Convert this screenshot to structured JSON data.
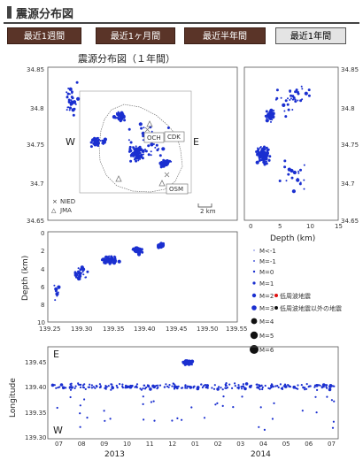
{
  "header": {
    "title": "震源分布図"
  },
  "tabs": [
    {
      "label": "最近1週間"
    },
    {
      "label": "最近1ヶ月間"
    },
    {
      "label": "最近半年間"
    },
    {
      "label": "最近1年間",
      "active": true
    }
  ],
  "map_panel": {
    "title": "震源分布図（１年間）",
    "lat_ticks": [
      "34.85",
      "34.8",
      "34.75",
      "34.7",
      "34.65"
    ],
    "west_label": "W",
    "east_label": "E",
    "stations": [
      "OCH",
      "CDK",
      "OSM"
    ],
    "scale_label": "2 km",
    "legend": [
      {
        "symbol": "×",
        "label": "NIED"
      },
      {
        "symbol": "△",
        "label": "JMA"
      }
    ]
  },
  "depth_side": {
    "lat_ticks": [
      "34.85",
      "34.8",
      "34.75",
      "34.7",
      "34.65"
    ],
    "x_ticks": [
      "0",
      "5",
      "10",
      "15"
    ],
    "xlabel": "Depth (km)"
  },
  "depth_panel": {
    "ylabel": "Depth (km)",
    "y_ticks": [
      "0",
      "2",
      "4",
      "6",
      "8",
      "10"
    ],
    "x_ticks": [
      "139.25",
      "139.30",
      "139.35",
      "139.40",
      "139.45",
      "139.50",
      "139.55"
    ]
  },
  "magnitude_legend": [
    {
      "label": "M<-1"
    },
    {
      "label": "M=-1"
    },
    {
      "label": "M=0"
    },
    {
      "label": "M=1"
    },
    {
      "label": "M=2",
      "note": "低周波地震"
    },
    {
      "label": "M=3",
      "note": "低周波地震以外の地震"
    },
    {
      "label": "M=4"
    },
    {
      "label": "M=5"
    },
    {
      "label": "M=6"
    }
  ],
  "colors": {
    "event": "#1a2fd0",
    "low_freq": "#e01010",
    "tab_bg": "#5a3428"
  },
  "time_panel": {
    "ylabel": "Longitude",
    "east_label": "E",
    "west_label": "W",
    "y_ticks": [
      "139.45",
      "139.40",
      "139.35",
      "139.30"
    ],
    "month_ticks": [
      "07",
      "08",
      "09",
      "10",
      "11",
      "12",
      "01",
      "02",
      "03",
      "04",
      "05",
      "06",
      "07"
    ],
    "year_labels": [
      "2013",
      "2014"
    ]
  },
  "chart_data": [
    {
      "type": "scatter",
      "title": "震源分布図（１年間）",
      "xlabel": "",
      "ylabel": "",
      "ylim": [
        34.65,
        34.85
      ],
      "note": "epicenter map, Izu-Oshima"
    },
    {
      "type": "scatter",
      "xlabel": "Depth (km)",
      "xlim": [
        0,
        15
      ],
      "ylim": [
        34.65,
        34.85
      ]
    },
    {
      "type": "scatter",
      "ylabel": "Depth (km)",
      "xlim": [
        139.25,
        139.55
      ],
      "ylim": [
        0,
        10
      ]
    },
    {
      "type": "scatter",
      "ylabel": "Longitude",
      "ylim": [
        139.3,
        139.47
      ],
      "x_categories": [
        "07",
        "08",
        "09",
        "10",
        "11",
        "12",
        "01",
        "02",
        "03",
        "04",
        "05",
        "06",
        "07"
      ]
    }
  ]
}
